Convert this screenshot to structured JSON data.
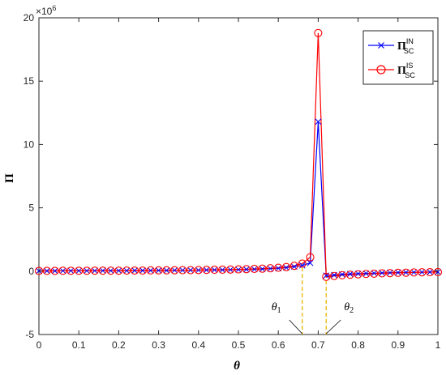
{
  "chart_data": {
    "type": "line",
    "title": "",
    "xlabel": "θ",
    "ylabel": "Π",
    "y_multiplier_label": "×10",
    "y_multiplier_exp": "6",
    "xlim": [
      0,
      1
    ],
    "ylim": [
      -5,
      20
    ],
    "xticks": [
      "0",
      "0.1",
      "0.2",
      "0.3",
      "0.4",
      "0.5",
      "0.6",
      "0.7",
      "0.8",
      "0.9",
      "1"
    ],
    "yticks": [
      "-5",
      "0",
      "5",
      "10",
      "15",
      "20"
    ],
    "grid": false,
    "legend_position": "top-right",
    "x": [
      0,
      0.02,
      0.04,
      0.06,
      0.08,
      0.1,
      0.12,
      0.14,
      0.16,
      0.18,
      0.2,
      0.22,
      0.24,
      0.26,
      0.28,
      0.3,
      0.32,
      0.34,
      0.36,
      0.38,
      0.4,
      0.42,
      0.44,
      0.46,
      0.48,
      0.5,
      0.52,
      0.54,
      0.56,
      0.58,
      0.6,
      0.62,
      0.64,
      0.66,
      0.68,
      0.7,
      0.72,
      0.74,
      0.76,
      0.78,
      0.8,
      0.82,
      0.84,
      0.86,
      0.88,
      0.9,
      0.92,
      0.94,
      0.96,
      0.98,
      1
    ],
    "series": [
      {
        "name_main": "Π",
        "name_sub": "SC",
        "name_sup": "IN",
        "color": "#0000ff",
        "marker": "x",
        "values": [
          0.02,
          0.02,
          0.02,
          0.03,
          0.03,
          0.03,
          0.03,
          0.03,
          0.04,
          0.04,
          0.04,
          0.04,
          0.05,
          0.05,
          0.05,
          0.06,
          0.06,
          0.07,
          0.07,
          0.08,
          0.08,
          0.09,
          0.1,
          0.1,
          0.11,
          0.12,
          0.14,
          0.15,
          0.17,
          0.2,
          0.23,
          0.28,
          0.35,
          0.45,
          0.65,
          11.8,
          -0.35,
          -0.3,
          -0.25,
          -0.22,
          -0.2,
          -0.18,
          -0.16,
          -0.14,
          -0.12,
          -0.11,
          -0.1,
          -0.09,
          -0.08,
          -0.07,
          -0.06
        ]
      },
      {
        "name_main": "Π",
        "name_sub": "SC",
        "name_sup": "IS",
        "color": "#ff0000",
        "marker": "o",
        "values": [
          0.02,
          0.02,
          0.02,
          0.03,
          0.03,
          0.03,
          0.03,
          0.04,
          0.04,
          0.04,
          0.04,
          0.05,
          0.05,
          0.05,
          0.06,
          0.06,
          0.07,
          0.07,
          0.08,
          0.08,
          0.09,
          0.1,
          0.11,
          0.12,
          0.13,
          0.14,
          0.16,
          0.18,
          0.2,
          0.23,
          0.27,
          0.33,
          0.42,
          0.6,
          1.1,
          18.8,
          -0.45,
          -0.38,
          -0.32,
          -0.28,
          -0.25,
          -0.22,
          -0.2,
          -0.17,
          -0.15,
          -0.13,
          -0.12,
          -0.1,
          -0.09,
          -0.08,
          -0.07
        ]
      }
    ],
    "annotations": [
      {
        "label": "θ",
        "sub": "1",
        "x": 0.66,
        "color": "#e6b800"
      },
      {
        "label": "θ",
        "sub": "2",
        "x": 0.72,
        "color": "#e6b800"
      }
    ]
  }
}
